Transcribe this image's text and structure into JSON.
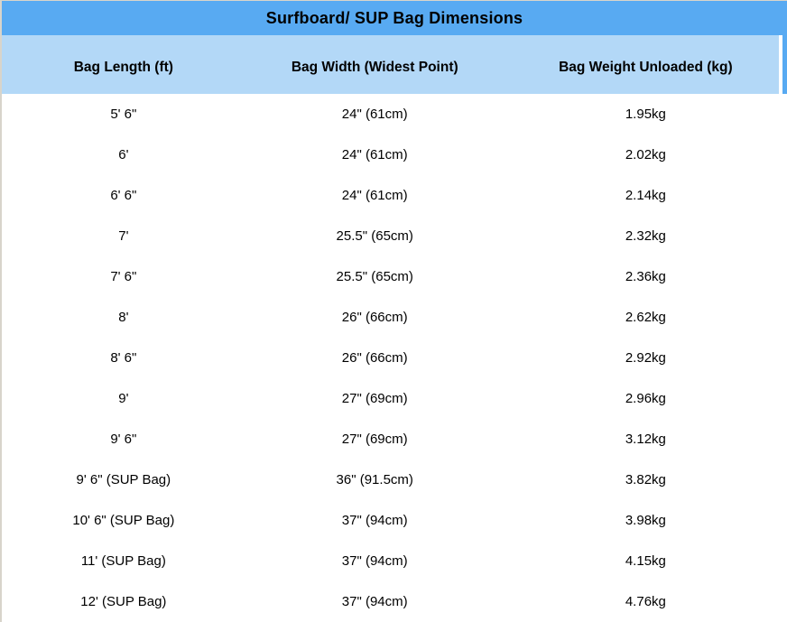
{
  "colors": {
    "title_bg": "#58aaf2",
    "header_bg": "#b3d8f7",
    "border": "#d8d4cb",
    "text": "#000000",
    "row_bg": "#ffffff"
  },
  "table": {
    "title": "Surfboard/ SUP Bag Dimensions",
    "columns": [
      "Bag Length (ft)",
      "Bag Width (Widest Point)",
      "Bag Weight Unloaded (kg)"
    ],
    "rows": [
      [
        "5' 6\"",
        "24\" (61cm)",
        "1.95kg"
      ],
      [
        "6'",
        "24\" (61cm)",
        "2.02kg"
      ],
      [
        "6' 6\"",
        "24\" (61cm)",
        "2.14kg"
      ],
      [
        "7'",
        "25.5\" (65cm)",
        "2.32kg"
      ],
      [
        "7' 6\"",
        "25.5\" (65cm)",
        "2.36kg"
      ],
      [
        "8'",
        "26\" (66cm)",
        "2.62kg"
      ],
      [
        "8' 6\"",
        "26\" (66cm)",
        "2.92kg"
      ],
      [
        "9'",
        "27\" (69cm)",
        "2.96kg"
      ],
      [
        "9' 6\"",
        "27\" (69cm)",
        "3.12kg"
      ],
      [
        "9' 6\" (SUP Bag)",
        "36\" (91.5cm)",
        "3.82kg"
      ],
      [
        "10' 6\" (SUP Bag)",
        "37\" (94cm)",
        "3.98kg"
      ],
      [
        "11' (SUP Bag)",
        "37\" (94cm)",
        "4.15kg"
      ],
      [
        "12' (SUP Bag)",
        "37\" (94cm)",
        "4.76kg"
      ]
    ]
  },
  "chart_data": {
    "type": "table",
    "title": "Surfboard/ SUP Bag Dimensions",
    "columns": [
      "Bag Length (ft)",
      "Bag Width (Widest Point)",
      "Bag Weight Unloaded (kg)"
    ],
    "rows": [
      [
        "5' 6\"",
        "24\" (61cm)",
        "1.95kg"
      ],
      [
        "6'",
        "24\" (61cm)",
        "2.02kg"
      ],
      [
        "6' 6\"",
        "24\" (61cm)",
        "2.14kg"
      ],
      [
        "7'",
        "25.5\" (65cm)",
        "2.32kg"
      ],
      [
        "7' 6\"",
        "25.5\" (65cm)",
        "2.36kg"
      ],
      [
        "8'",
        "26\" (66cm)",
        "2.62kg"
      ],
      [
        "8' 6\"",
        "26\" (66cm)",
        "2.92kg"
      ],
      [
        "9'",
        "27\" (69cm)",
        "2.96kg"
      ],
      [
        "9' 6\"",
        "27\" (69cm)",
        "3.12kg"
      ],
      [
        "9' 6\" (SUP Bag)",
        "36\" (91.5cm)",
        "3.82kg"
      ],
      [
        "10' 6\" (SUP Bag)",
        "37\" (94cm)",
        "3.98kg"
      ],
      [
        "11' (SUP Bag)",
        "37\" (94cm)",
        "4.15kg"
      ],
      [
        "12' (SUP Bag)",
        "37\" (94cm)",
        "4.76kg"
      ]
    ]
  }
}
